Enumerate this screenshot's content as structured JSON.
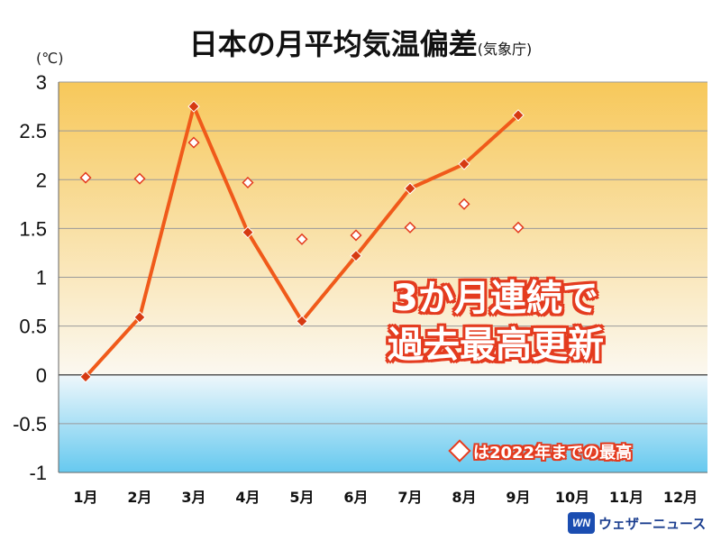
{
  "title": "日本の月平均気温偏差",
  "title_source": "(気象庁)",
  "unit_label": "(℃)",
  "annotation": {
    "line1": "3か月連続で",
    "line2": "過去最高更新",
    "color": "#e43b1f"
  },
  "legend_note": "は2022年までの最高",
  "logo": {
    "mark": "WN",
    "name": "ウェザーニュース"
  },
  "colors": {
    "line": "#f05a1a",
    "marker": "#d63a12",
    "record_marker": "#e43b1f",
    "bg_top": "#f7c85a",
    "bg_zero": "#ffffff",
    "bg_bottom": "#66c9ef"
  },
  "chart_data": {
    "type": "line",
    "title": "日本の月平均気温偏差",
    "ylabel": "(℃)",
    "ylim": [
      -1,
      3
    ],
    "yticks": [
      3,
      2.5,
      2,
      1.5,
      1,
      0.5,
      0,
      -0.5,
      -1
    ],
    "ytick_labels": [
      "3",
      "2.5",
      "2",
      "1.5",
      "1",
      "0.5",
      "0",
      "-0.5",
      "-1"
    ],
    "categories": [
      "1月",
      "2月",
      "3月",
      "4月",
      "5月",
      "6月",
      "7月",
      "8月",
      "9月",
      "10月",
      "11月",
      "12月"
    ],
    "grid": true,
    "series": [
      {
        "style": "line-diamond",
        "values": [
          -0.02,
          0.59,
          2.75,
          1.46,
          0.55,
          1.22,
          1.91,
          2.16,
          2.66,
          null,
          null,
          null
        ]
      },
      {
        "name": "は2022年までの最高",
        "style": "hollow-diamond",
        "values": [
          2.02,
          2.01,
          2.38,
          1.97,
          1.39,
          1.43,
          1.51,
          1.75,
          1.51,
          null,
          null,
          null
        ]
      }
    ]
  }
}
